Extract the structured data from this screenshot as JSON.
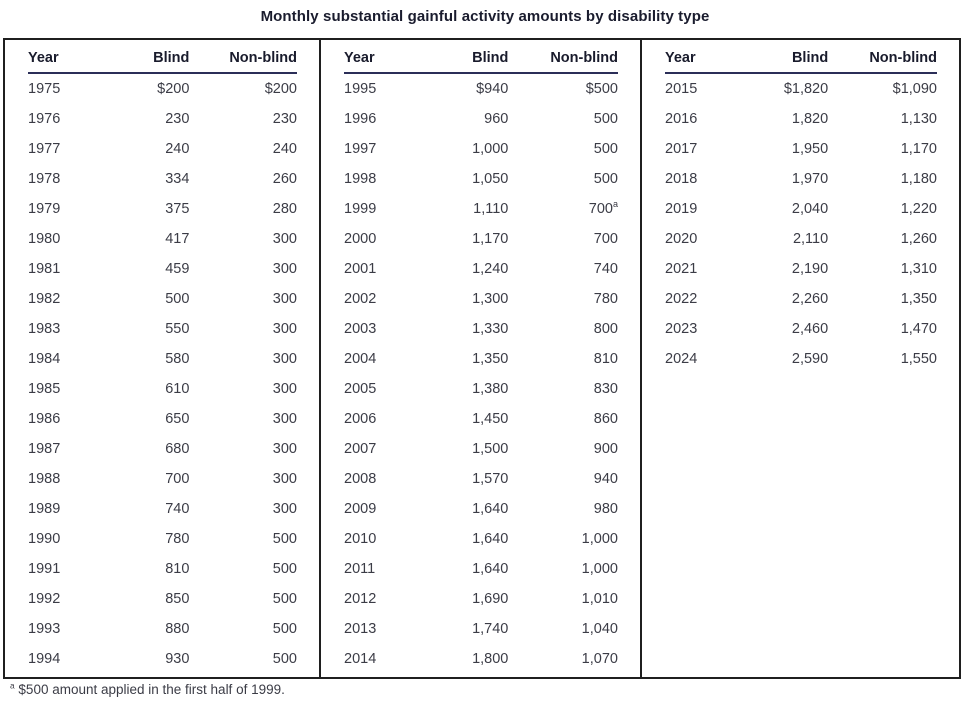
{
  "colors": {
    "outer_border": "#1f1f1f",
    "header_underline": "#2b2e58",
    "header_text": "#191b2c",
    "body_text": "#3b3c46",
    "background": "#ffffff"
  },
  "footnote": {
    "marker": "a",
    "text": "$500 amount applied in the first half of 1999."
  },
  "chart_data": {
    "type": "table",
    "title": "Monthly substantial gainful activity amounts by disability type",
    "columns": [
      "Year",
      "Blind",
      "Non-blind"
    ],
    "layout": "three column groups side by side, separated by vertical rules, inside a single black-bordered box; Year left-aligned, amounts right-aligned; navy rule under each header row",
    "column_groups": [
      {
        "rows": [
          [
            "1975",
            "$200",
            "$200"
          ],
          [
            "1976",
            "230",
            "230"
          ],
          [
            "1977",
            "240",
            "240"
          ],
          [
            "1978",
            "334",
            "260"
          ],
          [
            "1979",
            "375",
            "280"
          ],
          [
            "1980",
            "417",
            "300"
          ],
          [
            "1981",
            "459",
            "300"
          ],
          [
            "1982",
            "500",
            "300"
          ],
          [
            "1983",
            "550",
            "300"
          ],
          [
            "1984",
            "580",
            "300"
          ],
          [
            "1985",
            "610",
            "300"
          ],
          [
            "1986",
            "650",
            "300"
          ],
          [
            "1987",
            "680",
            "300"
          ],
          [
            "1988",
            "700",
            "300"
          ],
          [
            "1989",
            "740",
            "300"
          ],
          [
            "1990",
            "780",
            "500"
          ],
          [
            "1991",
            "810",
            "500"
          ],
          [
            "1992",
            "850",
            "500"
          ],
          [
            "1993",
            "880",
            "500"
          ],
          [
            "1994",
            "930",
            "500"
          ]
        ]
      },
      {
        "rows": [
          [
            "1995",
            "$940",
            "$500"
          ],
          [
            "1996",
            "960",
            "500"
          ],
          [
            "1997",
            "1,000",
            "500"
          ],
          [
            "1998",
            "1,050",
            "500"
          ],
          [
            "1999",
            "1,110",
            "700^a"
          ],
          [
            "2000",
            "1,170",
            "700"
          ],
          [
            "2001",
            "1,240",
            "740"
          ],
          [
            "2002",
            "1,300",
            "780"
          ],
          [
            "2003",
            "1,330",
            "800"
          ],
          [
            "2004",
            "1,350",
            "810"
          ],
          [
            "2005",
            "1,380",
            "830"
          ],
          [
            "2006",
            "1,450",
            "860"
          ],
          [
            "2007",
            "1,500",
            "900"
          ],
          [
            "2008",
            "1,570",
            "940"
          ],
          [
            "2009",
            "1,640",
            "980"
          ],
          [
            "2010",
            "1,640",
            "1,000"
          ],
          [
            "2011",
            "1,640",
            "1,000"
          ],
          [
            "2012",
            "1,690",
            "1,010"
          ],
          [
            "2013",
            "1,740",
            "1,040"
          ],
          [
            "2014",
            "1,800",
            "1,070"
          ]
        ]
      },
      {
        "rows": [
          [
            "2015",
            "$1,820",
            "$1,090"
          ],
          [
            "2016",
            "1,820",
            "1,130"
          ],
          [
            "2017",
            "1,950",
            "1,170"
          ],
          [
            "2018",
            "1,970",
            "1,180"
          ],
          [
            "2019",
            "2,040",
            "1,220"
          ],
          [
            "2020",
            "2,110",
            "1,260"
          ],
          [
            "2021",
            "2,190",
            "1,310"
          ],
          [
            "2022",
            "2,260",
            "1,350"
          ],
          [
            "2023",
            "2,460",
            "1,470"
          ],
          [
            "2024",
            "2,590",
            "1,550"
          ]
        ]
      }
    ],
    "footnote": "a $500 amount applied in the first half of 1999."
  }
}
